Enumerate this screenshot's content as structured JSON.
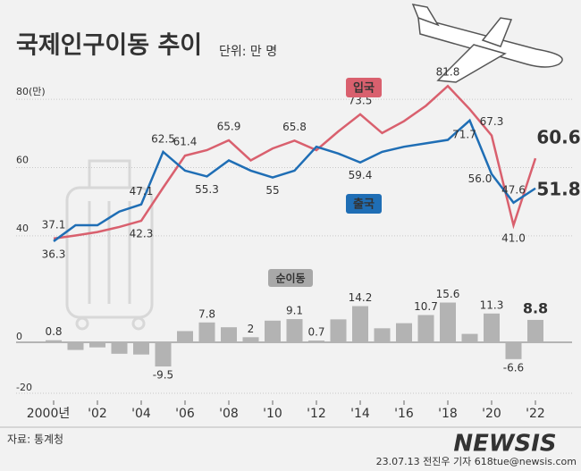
{
  "title": "국제인구이동 추이",
  "unit": "단위: 만 명",
  "source": "자료: 통계청",
  "credit": "23.07.13 전진우 기자 618tue@newsis.com",
  "watermark": "NEWSIS",
  "chart_data": [
    {
      "type": "line",
      "categories": [
        "2000년",
        null,
        "'02",
        null,
        "'04",
        null,
        "'06",
        null,
        "'08",
        null,
        "'10",
        null,
        "'12",
        null,
        "'14",
        null,
        "'16",
        null,
        "'18",
        null,
        "'20",
        null,
        "'22"
      ],
      "ylim": [
        30,
        85
      ],
      "yticks": [
        40,
        60,
        {
          "value": 80,
          "label": "80(만)"
        }
      ],
      "grid": true,
      "series": [
        {
          "name": "입국",
          "color": "#d9606e",
          "values": [
            37.1,
            38.0,
            39.0,
            40.5,
            42.3,
            52.0,
            61.4,
            63.0,
            65.9,
            60.0,
            63.5,
            65.8,
            63.0,
            68.5,
            73.5,
            68.0,
            71.5,
            76.0,
            81.8,
            75.0,
            67.3,
            41.0,
            60.6
          ],
          "value_labels": [
            "37.1",
            null,
            null,
            null,
            "42.3",
            null,
            "61.4",
            null,
            "65.9",
            null,
            null,
            "65.8",
            null,
            null,
            "73.5",
            null,
            null,
            null,
            "81.8",
            null,
            "67.3",
            "41.0",
            "60.6"
          ]
        },
        {
          "name": "출국",
          "color": "#1f6eb5",
          "values": [
            36.3,
            41.0,
            41.0,
            45.0,
            47.1,
            62.5,
            57.0,
            55.3,
            60.0,
            57.0,
            55.0,
            57.0,
            64.0,
            62.0,
            59.4,
            62.5,
            64.0,
            65.0,
            66.0,
            71.7,
            56.0,
            47.6,
            51.8
          ],
          "value_labels": [
            "36.3",
            null,
            null,
            null,
            "47.1",
            "62.5",
            null,
            "55.3",
            null,
            null,
            "55",
            null,
            null,
            null,
            "59.4",
            null,
            null,
            null,
            null,
            "71.7",
            "56.0",
            "47.6",
            "51.8"
          ]
        }
      ]
    },
    {
      "type": "bar",
      "name": "순이동",
      "color": "#b3b3b3",
      "ylim": [
        -20,
        20
      ],
      "yticks": [
        -20,
        0
      ],
      "values": [
        0.8,
        -3.0,
        -2.0,
        -4.5,
        -4.8,
        -9.5,
        4.4,
        7.8,
        5.9,
        2,
        8.5,
        9.1,
        0.7,
        9.0,
        14.2,
        5.5,
        7.5,
        10.7,
        15.6,
        3.3,
        11.3,
        -6.6,
        8.8
      ],
      "value_labels": [
        "0.8",
        null,
        null,
        null,
        null,
        "-9.5",
        null,
        "7.8",
        null,
        "2",
        null,
        "9.1",
        "0.7",
        null,
        "14.2",
        null,
        null,
        "10.7",
        "15.6",
        null,
        "11.3",
        "-6.6",
        "8.8"
      ]
    }
  ]
}
